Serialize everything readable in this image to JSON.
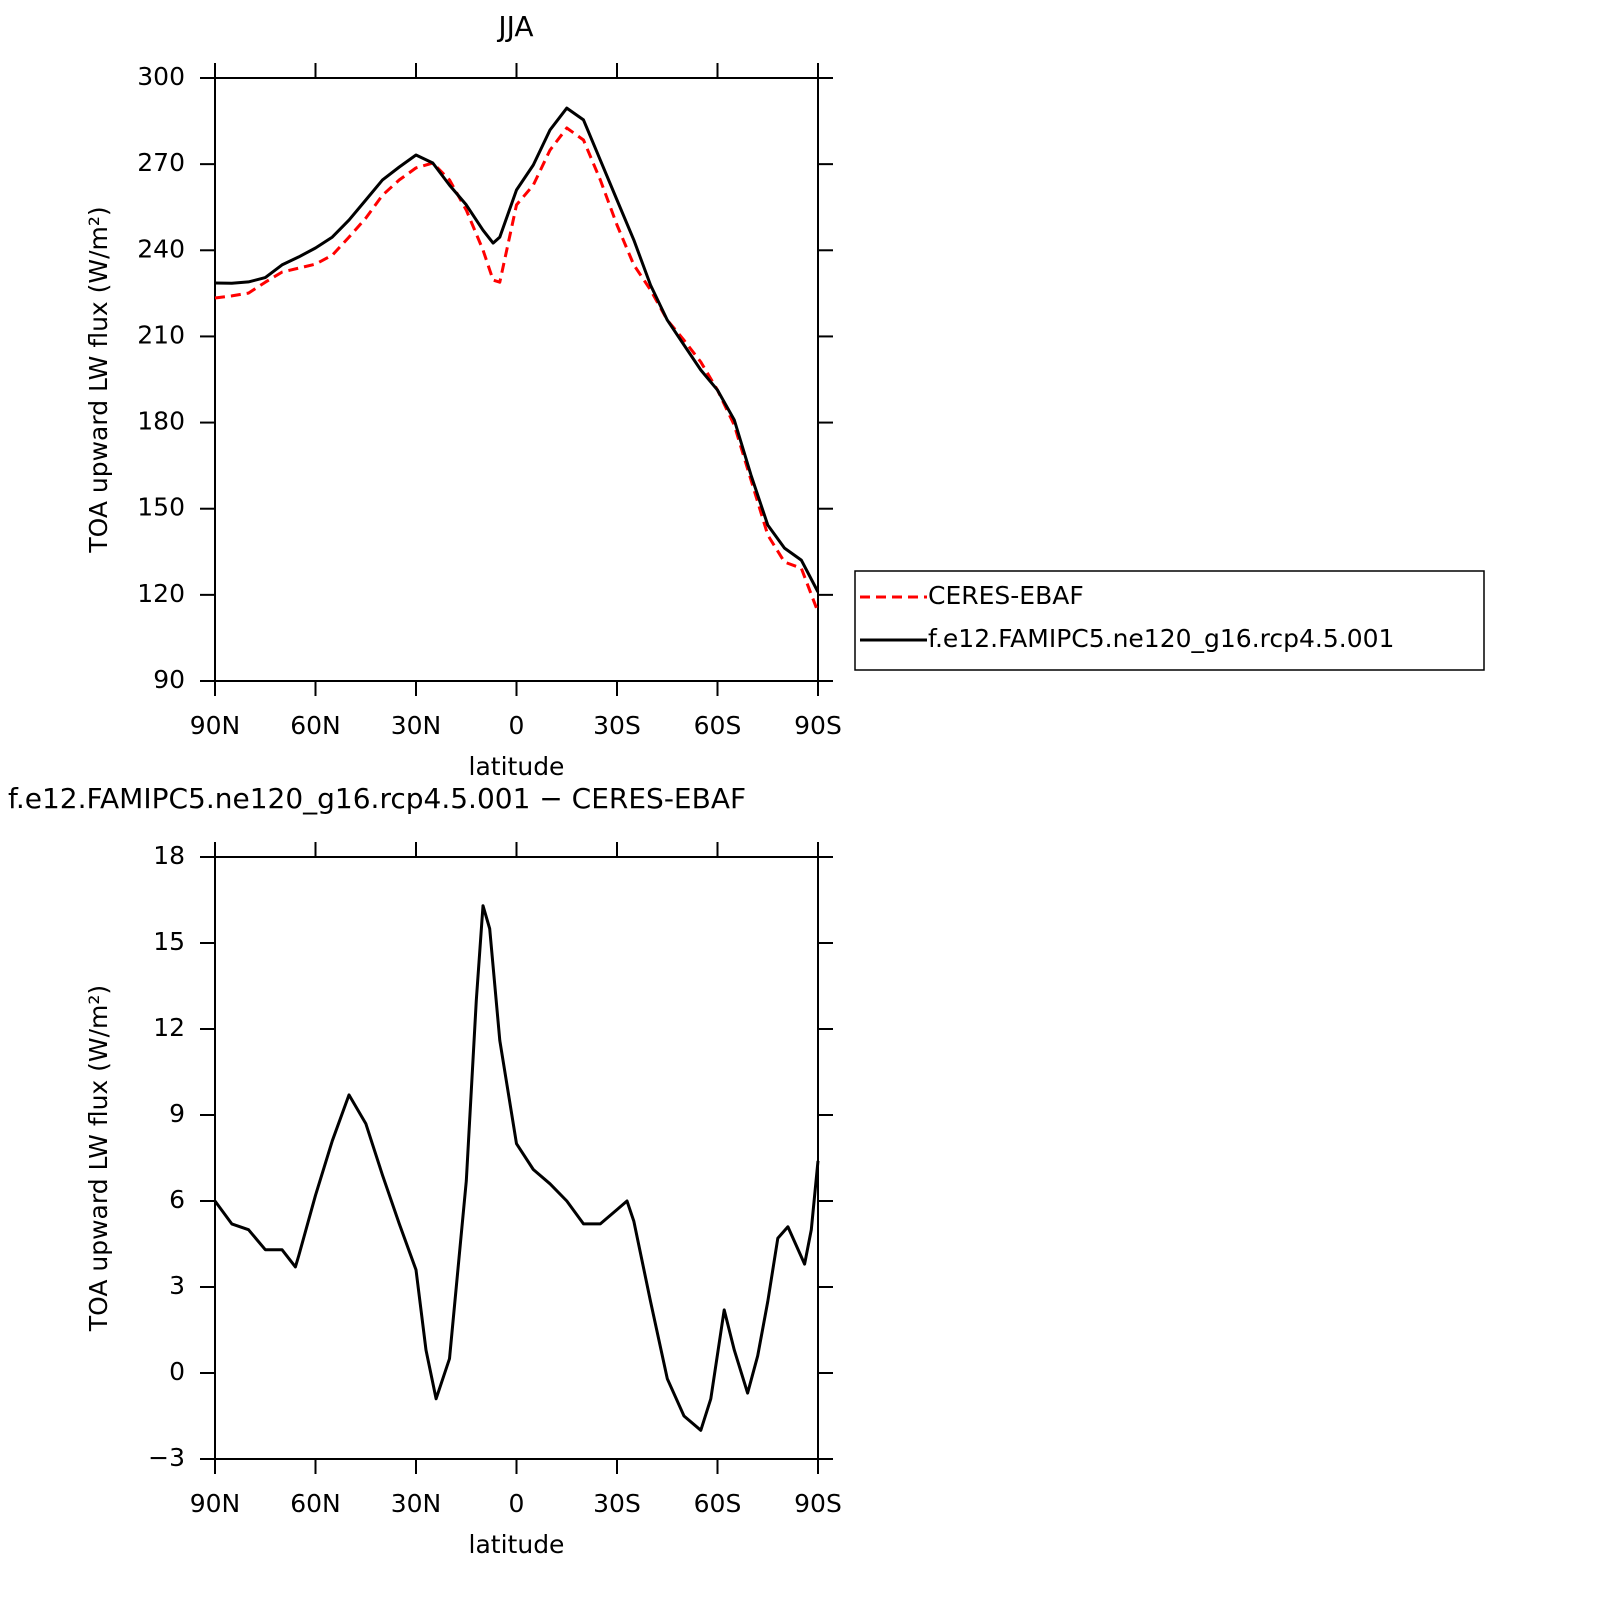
{
  "chart_data": [
    {
      "type": "line",
      "title": "JJA",
      "x_label": "latitude",
      "y_label": "TOA upward LW flux (W/m²)",
      "x": [
        90,
        85,
        80,
        75,
        70,
        65,
        60,
        55,
        50,
        45,
        40,
        35,
        30,
        25,
        20,
        15,
        10,
        7,
        5,
        0,
        -5,
        -10,
        -15,
        -20,
        -25,
        -30,
        -35,
        -40,
        -45,
        -50,
        -55,
        -60,
        -65,
        -70,
        -75,
        -80,
        -85,
        -90
      ],
      "series": [
        {
          "name": "CERES-EBAF",
          "color": "#ff0000",
          "dash": true,
          "values": [
            223.4,
            224.1,
            225.1,
            228.9,
            232.4,
            233.8,
            235.2,
            238.3,
            244.6,
            251.2,
            259.2,
            264.5,
            268.7,
            270.4,
            264.5,
            254,
            240.1,
            229.6,
            228.9,
            255.8,
            262.7,
            274.9,
            282.6,
            278.4,
            264.5,
            248.8,
            234.9,
            226.2,
            215.7,
            208.7,
            201.1,
            191.3,
            179.1,
            160,
            140.8,
            131.4,
            129.3,
            114
          ]
        },
        {
          "name": "f.e12.FAMIPC5.ne120_g16.rcp4.5.001",
          "color": "#000000",
          "dash": false,
          "values": [
            228.6,
            228.5,
            229,
            230.5,
            234.9,
            237.7,
            240.8,
            244.6,
            250.5,
            257.5,
            264.5,
            269,
            273.2,
            270.4,
            262.7,
            255.8,
            247,
            242.5,
            244.6,
            261,
            269.7,
            281.9,
            289.5,
            285.4,
            271.4,
            257.5,
            243.6,
            227.9,
            215.7,
            207,
            198.3,
            191.3,
            180.9,
            161.7,
            144.3,
            136.3,
            132.1,
            121
          ]
        }
      ],
      "xlim": [
        90,
        -90
      ],
      "xticks": [
        {
          "value": 90,
          "label": "90N"
        },
        {
          "value": 60,
          "label": "60N"
        },
        {
          "value": 30,
          "label": "30N"
        },
        0,
        {
          "value": -30,
          "label": "30S"
        },
        {
          "value": -60,
          "label": "60S"
        },
        {
          "value": -90,
          "label": "90S"
        }
      ],
      "ylim": [
        90,
        300
      ],
      "yticks": [
        90,
        120,
        150,
        180,
        210,
        240,
        270,
        300
      ],
      "legend": "right"
    },
    {
      "type": "line",
      "title": "f.e12.FAMIPC5.ne120_g16.rcp4.5.001 − CERES-EBAF",
      "x_label": "latitude",
      "y_label": "TOA upward LW flux (W/m²)",
      "x": [
        90,
        85,
        80,
        75,
        70,
        66,
        65,
        60,
        55,
        50,
        45,
        40,
        35,
        30,
        27,
        24,
        20,
        15,
        12,
        10,
        8,
        5,
        0,
        -5,
        -10,
        -15,
        -20,
        -25,
        -30,
        -33,
        -35,
        -40,
        -45,
        -50,
        -55,
        -58,
        -62,
        -65,
        -69,
        -72,
        -75,
        -78,
        -81,
        -86,
        -88,
        -90
      ],
      "series": [
        {
          "name": "f.e12.FAMIPC5.ne120_g16.rcp4.5.001",
          "color": "#000000",
          "dash": false,
          "values": [
            6.0,
            5.2,
            5.0,
            4.3,
            4.3,
            3.7,
            4.1,
            6.2,
            8.1,
            9.7,
            8.7,
            6.9,
            5.2,
            3.6,
            0.8,
            -0.9,
            0.5,
            6.7,
            13.0,
            16.3,
            15.5,
            11.6,
            8.0,
            7.1,
            6.6,
            6.0,
            5.2,
            5.2,
            5.7,
            6.0,
            5.3,
            2.5,
            -0.2,
            -1.5,
            -2.0,
            -0.9,
            2.2,
            0.8,
            -0.7,
            0.6,
            2.5,
            4.7,
            5.1,
            3.8,
            5.0,
            7.4
          ]
        }
      ],
      "xlim": [
        90,
        -90
      ],
      "xticks": [
        {
          "value": 90,
          "label": "90N"
        },
        {
          "value": 60,
          "label": "60N"
        },
        {
          "value": 30,
          "label": "30N"
        },
        0,
        {
          "value": -30,
          "label": "30S"
        },
        {
          "value": -60,
          "label": "60S"
        },
        {
          "value": -90,
          "label": "90S"
        }
      ],
      "ylim": [
        -3,
        18
      ],
      "yticks": [
        {
          "value": -3,
          "label": "−3"
        },
        0,
        3,
        6,
        9,
        12,
        15,
        18
      ]
    }
  ]
}
